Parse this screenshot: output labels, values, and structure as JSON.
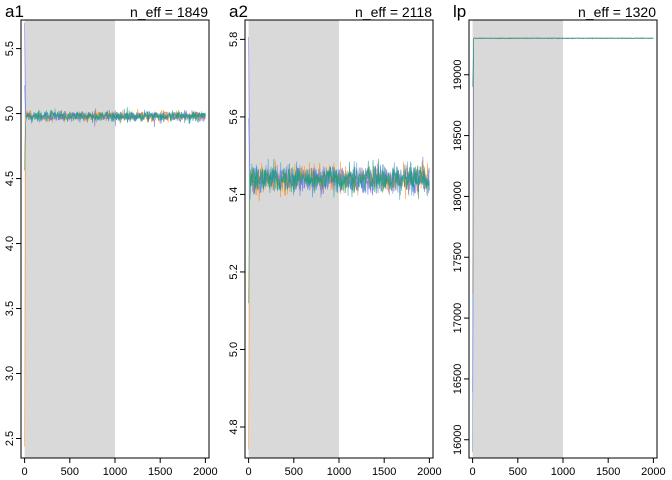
{
  "figure": {
    "panels": [
      {
        "title": "a1",
        "neff_label": "n_eff = 1849",
        "mean": 4.98,
        "noise_sd": 0.02,
        "init_values": [
          5.64,
          2.42,
          5.2,
          4.6
        ],
        "chart_data": {
          "type": "line",
          "title": "a1",
          "xlabel": "",
          "ylabel": "",
          "xlim": [
            -40,
            2040
          ],
          "ylim": [
            2.35,
            5.72
          ],
          "x_ticks": [
            "0",
            "500",
            "1000",
            "1500",
            "2000"
          ],
          "x_tick_values": [
            0,
            500,
            1000,
            1500,
            2000
          ],
          "y_ticks": [
            "2.5",
            "3.0",
            "3.5",
            "4.0",
            "4.5",
            "5.0",
            "5.5"
          ],
          "y_tick_values": [
            2.5,
            3.0,
            3.5,
            4.0,
            4.5,
            5.0,
            5.5
          ],
          "warmup_region": [
            0,
            1000
          ],
          "iterations": 2000,
          "series": [
            {
              "color": "#7b68ee"
            },
            {
              "color": "#ff8c1a"
            },
            {
              "color": "#4a90d9"
            },
            {
              "color": "#1a9e77"
            }
          ]
        }
      },
      {
        "title": "a2",
        "neff_label": "n_eff = 2118",
        "mean": 5.44,
        "noise_sd": 0.018,
        "init_values": [
          5.81,
          4.75,
          5.6,
          5.1
        ],
        "chart_data": {
          "type": "line",
          "title": "a2",
          "xlabel": "",
          "ylabel": "",
          "xlim": [
            -40,
            2040
          ],
          "ylim": [
            4.72,
            5.85
          ],
          "x_ticks": [
            "0",
            "500",
            "1000",
            "1500",
            "2000"
          ],
          "x_tick_values": [
            0,
            500,
            1000,
            1500,
            2000
          ],
          "y_ticks": [
            "4.8",
            "5.0",
            "5.2",
            "5.4",
            "5.6",
            "5.8"
          ],
          "y_tick_values": [
            4.8,
            5.0,
            5.2,
            5.4,
            5.6,
            5.8
          ],
          "warmup_region": [
            0,
            1000
          ],
          "iterations": 2000,
          "series": [
            {
              "color": "#7b68ee"
            },
            {
              "color": "#ff8c1a"
            },
            {
              "color": "#4a90d9"
            },
            {
              "color": "#1a9e77"
            }
          ]
        }
      },
      {
        "title": "lp",
        "neff_label": "n_eff = 1320",
        "mean": 19300,
        "noise_sd": 1.5,
        "init_values": [
          16400,
          17200,
          15900,
          18900
        ],
        "chart_data": {
          "type": "line",
          "title": "lp",
          "xlabel": "",
          "ylabel": "",
          "xlim": [
            -40,
            2040
          ],
          "ylim": [
            15850,
            19450
          ],
          "x_ticks": [
            "0",
            "500",
            "1000",
            "1500",
            "2000"
          ],
          "x_tick_values": [
            0,
            500,
            1000,
            1500,
            2000
          ],
          "y_ticks": [
            "16000",
            "16500",
            "17000",
            "17500",
            "18000",
            "18500",
            "19000"
          ],
          "y_tick_values": [
            16000,
            16500,
            17000,
            17500,
            18000,
            18500,
            19000
          ],
          "warmup_region": [
            0,
            1000
          ],
          "iterations": 2000,
          "series": [
            {
              "color": "#7b68ee"
            },
            {
              "color": "#ff8c1a"
            },
            {
              "color": "#4a90d9"
            },
            {
              "color": "#1a9e77"
            }
          ]
        }
      }
    ]
  }
}
